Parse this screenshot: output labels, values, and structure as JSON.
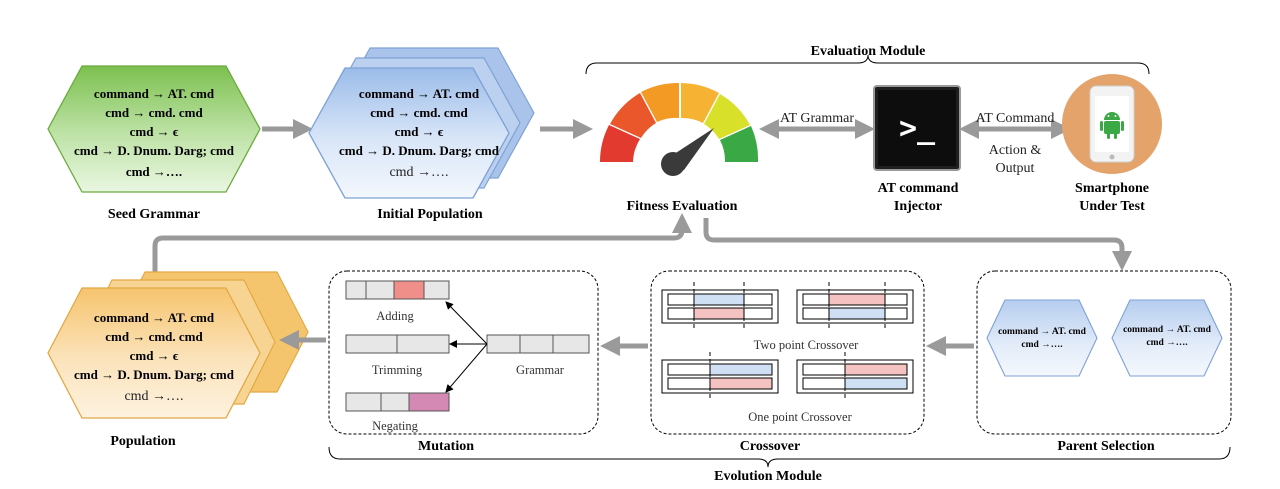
{
  "labels": {
    "evaluation_module": "Evaluation Module",
    "evolution_module": "Evolution Module",
    "seed_grammar": "Seed Grammar",
    "initial_population": "Initial Population",
    "fitness_evaluation": "Fitness Evaluation",
    "injector_line1": "AT command",
    "injector_line2": "Injector",
    "phone_line1": "Smartphone",
    "phone_line2": "Under Test",
    "population": "Population",
    "mutation": "Mutation",
    "crossover": "Crossover",
    "parent_selection": "Parent Selection"
  },
  "arrows": {
    "at_grammar": "AT Grammar",
    "at_command": "AT Command",
    "action_output_line1": "Action &",
    "action_output_line2": "Output"
  },
  "grammar": {
    "line1": "command → AT. cmd",
    "line2": "cmd → cmd. cmd",
    "line3": "cmd → ϵ",
    "line4": "cmd → D. Dnum. Darg; cmd",
    "line5": "cmd →…."
  },
  "parent": {
    "line1": "command → AT. cmd",
    "line2": "cmd →…."
  },
  "mutation": {
    "adding": "Adding",
    "trimming": "Trimming",
    "negating": "Negating",
    "grammar": "Grammar"
  },
  "crossover": {
    "two_point": "Two point Crossover",
    "one_point": "One point Crossover"
  },
  "terminal_prompt": ">_",
  "colors": {
    "seed_fill": "#8fcc68",
    "initial_fill": "#a8c4ec",
    "population_fill": "#fad79a",
    "parent_fill": "#c6d8f2",
    "arrow_gray": "#9a9a9a",
    "phone_circle": "#e3a36a",
    "gauge_red": "#e23a2e",
    "gauge_orange": "#f39a24",
    "gauge_yellow": "#d9e02a",
    "gauge_green": "#3aa845",
    "seg_pink": "#f1a3a0",
    "seg_blue": "#cfe0f5",
    "seg_magenta": "#d489b4"
  }
}
